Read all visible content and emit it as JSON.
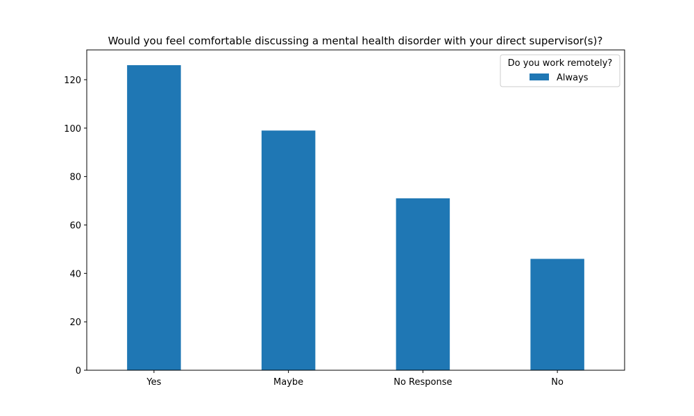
{
  "chart_data": {
    "type": "bar",
    "title": "Would you feel comfortable discussing a mental health disorder with your direct supervisor(s)?",
    "xlabel": "",
    "ylabel": "",
    "categories": [
      "Yes",
      "Maybe",
      "No Response",
      "No"
    ],
    "series": [
      {
        "name": "Always",
        "values": [
          126,
          99,
          71,
          46
        ],
        "color": "#1f77b4"
      }
    ],
    "ylim": [
      0,
      132.3
    ],
    "yticks": [
      0,
      20,
      40,
      60,
      80,
      100,
      120
    ],
    "legend": {
      "title": "Do you work remotely?",
      "placement": "top-right"
    },
    "grid": false
  }
}
